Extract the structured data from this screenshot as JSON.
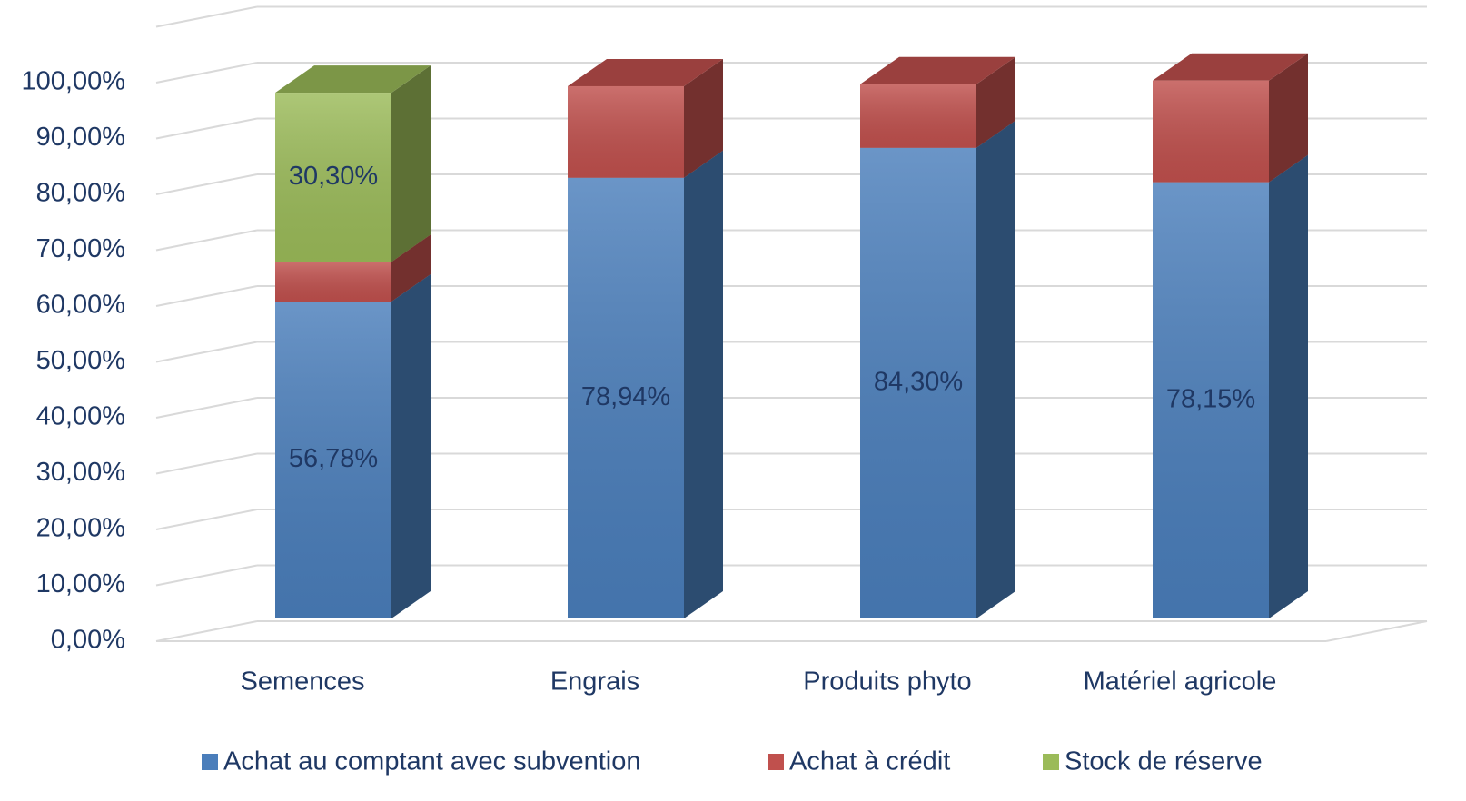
{
  "chart_data": {
    "type": "bar3d_stacked",
    "categories": [
      "Semences",
      "Engrais",
      "Produits phyto",
      "Matériel agricole"
    ],
    "series": [
      {
        "name": "Achat au comptant avec subvention",
        "color": "#4a7ebb",
        "values": [
          56.78,
          78.94,
          84.3,
          78.15
        ],
        "value_labels": [
          "56,78%",
          "78,94%",
          "84,30%",
          "78,15%"
        ]
      },
      {
        "name": "Achat à crédit",
        "color": "#c0504d",
        "values": [
          7.1,
          16.4,
          11.4,
          18.2
        ]
      },
      {
        "name": "Stock de réserve",
        "color": "#9bbb59",
        "values": [
          30.3,
          null,
          null,
          null
        ],
        "value_labels": [
          "30,30%",
          null,
          null,
          null
        ]
      }
    ],
    "ylim": [
      0,
      110
    ],
    "yticks": [
      {
        "value": 0,
        "label": "0,00%"
      },
      {
        "value": 10,
        "label": "10,00%"
      },
      {
        "value": 20,
        "label": "20,00%"
      },
      {
        "value": 30,
        "label": "30,00%"
      },
      {
        "value": 40,
        "label": "40,00%"
      },
      {
        "value": 50,
        "label": "50,00%"
      },
      {
        "value": 60,
        "label": "60,00%"
      },
      {
        "value": 70,
        "label": "70,00%"
      },
      {
        "value": 80,
        "label": "80,00%"
      },
      {
        "value": 90,
        "label": "90,00%"
      },
      {
        "value": 100,
        "label": "100,00%"
      }
    ],
    "grid": true,
    "legend": "bottom"
  }
}
